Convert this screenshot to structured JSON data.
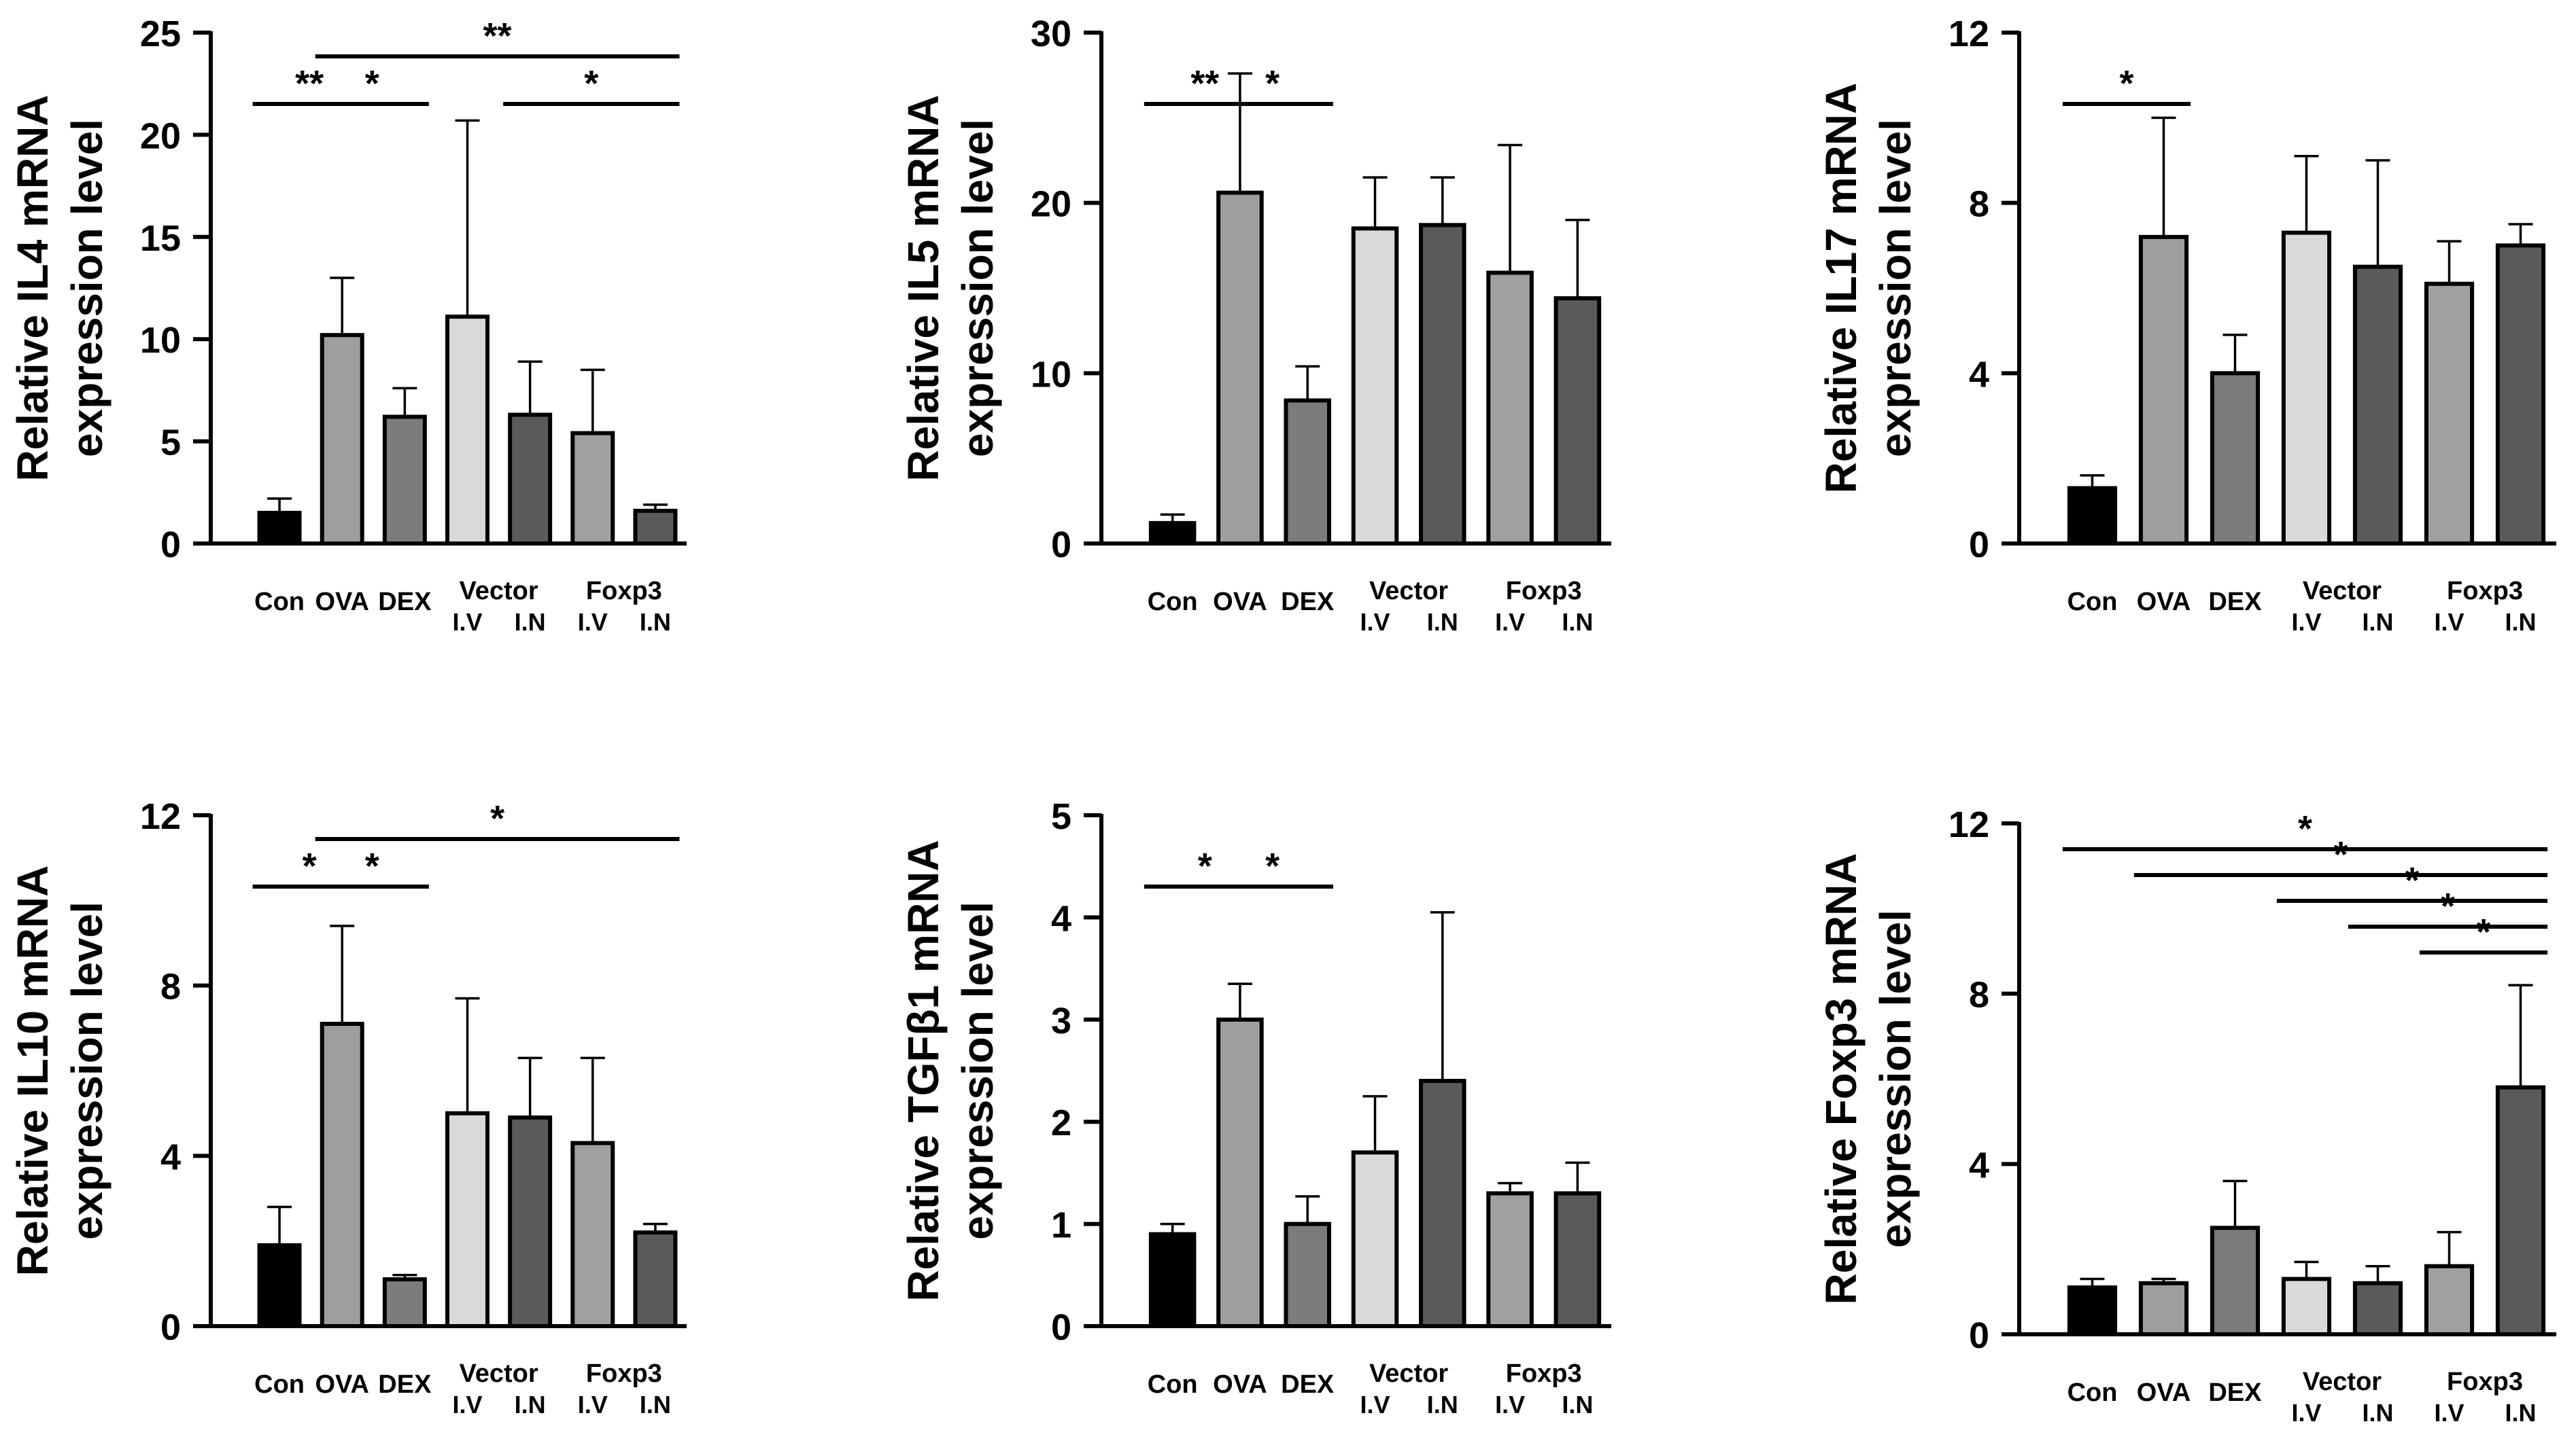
{
  "figure_id": "cytokine-mRNA-panel",
  "colors": {
    "Con": "#000000",
    "OVA": "#9e9e9e",
    "DEX": "#7c7c7c",
    "Vector I.V": "#d9d9d9",
    "Vector I.N": "#5a5a5a",
    "Foxp3 I.V": "#a0a0a0",
    "Foxp3 I.N": "#5a5a5a"
  },
  "x_labels": {
    "single": [
      "Con",
      "OVA",
      "DEX"
    ],
    "groups": [
      {
        "name": "Vector",
        "sub": [
          "I.V",
          "I.N"
        ]
      },
      {
        "name": "Foxp3",
        "sub": [
          "I.V",
          "I.N"
        ]
      }
    ]
  },
  "chart_data": [
    {
      "type": "bar",
      "ylabel_line1": "Relative IL4 mRNA",
      "ylabel_line2": "expression level",
      "ylim": [
        0,
        25
      ],
      "yticks": [
        0,
        5,
        10,
        15,
        20,
        25
      ],
      "categories": [
        "Con",
        "OVA",
        "DEX",
        "Vector I.V",
        "Vector I.N",
        "Foxp3 I.V",
        "Foxp3 I.N"
      ],
      "values": [
        1.5,
        10.2,
        6.2,
        11.1,
        6.3,
        5.4,
        1.6
      ],
      "errors": [
        0.7,
        2.8,
        1.4,
        9.6,
        2.6,
        3.1,
        0.3
      ],
      "significance": [
        {
          "from": 0,
          "to": 1,
          "label": "**",
          "level": 0
        },
        {
          "from": 1,
          "to": 2,
          "label": "*",
          "level": 0
        },
        {
          "from": 4,
          "to": 6,
          "label": "*",
          "level": 0
        },
        {
          "from": 1,
          "to": 6,
          "label": "**",
          "level": 1
        }
      ]
    },
    {
      "type": "bar",
      "ylabel_line1": "Relative IL5 mRNA",
      "ylabel_line2": "expression level",
      "ylim": [
        0,
        30
      ],
      "yticks": [
        0,
        10,
        20,
        30
      ],
      "categories": [
        "Con",
        "OVA",
        "DEX",
        "Vector I.V",
        "Vector I.N",
        "Foxp3 I.V",
        "Foxp3 I.N"
      ],
      "values": [
        1.2,
        20.6,
        8.4,
        18.5,
        18.7,
        15.9,
        14.4
      ],
      "errors": [
        0.5,
        7.0,
        2.0,
        3.0,
        2.8,
        7.5,
        4.6
      ],
      "significance": [
        {
          "from": 0,
          "to": 1,
          "label": "**",
          "level": 0
        },
        {
          "from": 1,
          "to": 2,
          "label": "*",
          "level": 0
        }
      ]
    },
    {
      "type": "bar",
      "ylabel_line1": "Relative IL17 mRNA",
      "ylabel_line2": "expression level",
      "ylim": [
        0,
        12
      ],
      "yticks": [
        0,
        4,
        8,
        12
      ],
      "categories": [
        "Con",
        "OVA",
        "DEX",
        "Vector I.V",
        "Vector I.N",
        "Foxp3 I.V",
        "Foxp3 I.N"
      ],
      "values": [
        1.3,
        7.2,
        4.0,
        7.3,
        6.5,
        6.1,
        7.0
      ],
      "errors": [
        0.3,
        2.8,
        0.9,
        1.8,
        2.5,
        1.0,
        0.5
      ],
      "significance": [
        {
          "from": 0,
          "to": 1,
          "label": "*",
          "level": 0
        }
      ]
    },
    {
      "type": "bar",
      "ylabel_line1": "Relative IL10 mRNA",
      "ylabel_line2": "expression level",
      "ylim": [
        0,
        12
      ],
      "yticks": [
        0,
        4,
        8,
        12
      ],
      "categories": [
        "Con",
        "OVA",
        "DEX",
        "Vector I.V",
        "Vector I.N",
        "Foxp3 I.V",
        "Foxp3 I.N"
      ],
      "values": [
        1.9,
        7.1,
        1.1,
        5.0,
        4.9,
        4.3,
        2.2
      ],
      "errors": [
        0.9,
        2.3,
        0.1,
        2.7,
        1.4,
        2.0,
        0.2
      ],
      "significance": [
        {
          "from": 0,
          "to": 1,
          "label": "*",
          "level": 0
        },
        {
          "from": 1,
          "to": 2,
          "label": "*",
          "level": 0
        },
        {
          "from": 1,
          "to": 6,
          "label": "*",
          "level": 1
        }
      ]
    },
    {
      "type": "bar",
      "ylabel_line1": "Relative TGFβ1 mRNA",
      "ylabel_line2": "expression level",
      "ylim": [
        0,
        5
      ],
      "yticks": [
        0,
        1,
        2,
        3,
        4,
        5
      ],
      "categories": [
        "Con",
        "OVA",
        "DEX",
        "Vector I.V",
        "Vector I.N",
        "Foxp3 I.V",
        "Foxp3 I.N"
      ],
      "values": [
        0.9,
        3.0,
        1.0,
        1.7,
        2.4,
        1.3,
        1.3
      ],
      "errors": [
        0.1,
        0.35,
        0.27,
        0.55,
        1.65,
        0.1,
        0.3
      ],
      "significance": [
        {
          "from": 0,
          "to": 1,
          "label": "*",
          "level": 0
        },
        {
          "from": 1,
          "to": 2,
          "label": "*",
          "level": 0
        }
      ]
    },
    {
      "type": "bar",
      "ylabel_line1": "Relative Foxp3 mRNA",
      "ylabel_line2": "expression level",
      "ylim": [
        0,
        12
      ],
      "yticks": [
        0,
        4,
        8,
        12
      ],
      "categories": [
        "Con",
        "OVA",
        "DEX",
        "Vector I.V",
        "Vector I.N",
        "Foxp3 I.V",
        "Foxp3 I.N"
      ],
      "values": [
        1.1,
        1.2,
        2.5,
        1.3,
        1.2,
        1.6,
        5.8
      ],
      "errors": [
        0.2,
        0.1,
        1.1,
        0.4,
        0.4,
        0.8,
        2.4
      ],
      "significance": [
        {
          "from": 5,
          "to": 6,
          "label": "*",
          "level": 0
        },
        {
          "from": 4,
          "to": 6,
          "label": "*",
          "level": 1
        },
        {
          "from": 3,
          "to": 6,
          "label": "*",
          "level": 2
        },
        {
          "from": 1,
          "to": 6,
          "label": "*",
          "level": 3
        },
        {
          "from": 0,
          "to": 6,
          "label": "*",
          "level": 4
        }
      ]
    }
  ]
}
